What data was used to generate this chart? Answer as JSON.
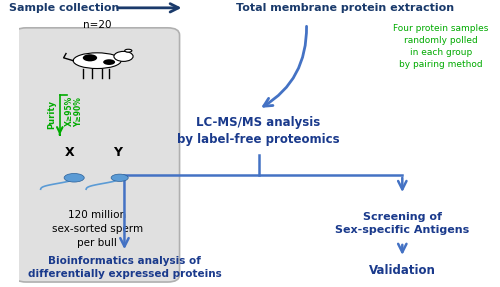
{
  "bg_color": "#ffffff",
  "box_edge_color": "#b0b0b0",
  "box_face_color": "#e0e0e0",
  "dark_blue": "#1a3a6b",
  "bold_blue": "#1a3a8c",
  "green_text": "#00aa00",
  "arrow_color": "#4472c4",
  "arrow_dark": "#1a3a6b",
  "top_left_label": "Sample collection",
  "top_arrow_label": "Total membrane protein extraction",
  "right_note": "Four protein samples\nrandomly polled\nin each group\nby pairing method",
  "mid_center_label": "LC-MS/MS analysis\nby label-free proteomics",
  "bottom_left_label": "Bioinformatics analysis of\ndifferentially expressed proteins",
  "bottom_right_top_label": "Screening of\nSex-specific Antigens",
  "bottom_right_bottom_label": "Validation",
  "box_n": "n=20",
  "box_purity": "Purity",
  "box_x_purity": "X≥95%",
  "box_y_purity": "Y≥90%",
  "box_bottom": "120 million\nsex-sorted sperm\nper bull"
}
